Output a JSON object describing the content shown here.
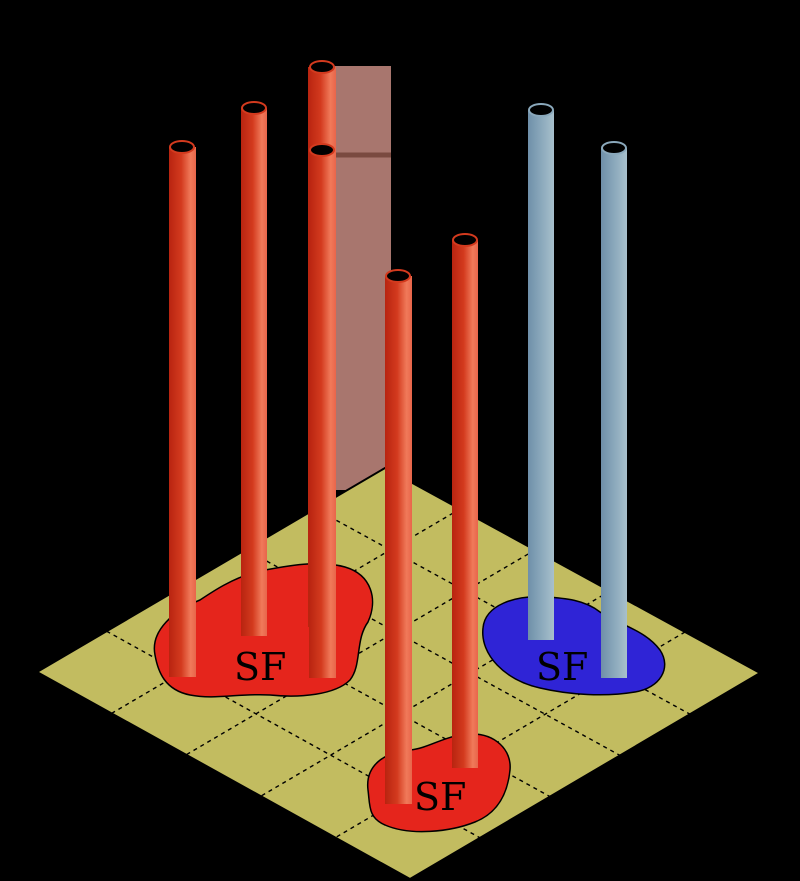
{
  "colors": {
    "background": "#000000",
    "plate_fill": "#c2bc60",
    "plate_stroke": "#000000",
    "grid_line": "#000000",
    "red_patch": "#e5251c",
    "blue_patch": "#2f24d6",
    "red_tube_dark": "#b82410",
    "red_tube_light": "#f07a5a",
    "blue_tube_dark": "#6f8fa9",
    "blue_tube_light": "#a8c0cc",
    "tube_cap": "#000000",
    "back_panel": "#a8766e"
  },
  "patches": [
    {
      "id": "patch-left",
      "label": "SF",
      "color": "red"
    },
    {
      "id": "patch-right",
      "label": "SF",
      "color": "blue"
    },
    {
      "id": "patch-bottom",
      "label": "SF",
      "color": "red"
    }
  ],
  "tubes": [
    {
      "id": "tube-1",
      "color": "red"
    },
    {
      "id": "tube-2",
      "color": "red"
    },
    {
      "id": "tube-3",
      "color": "red"
    },
    {
      "id": "tube-4",
      "color": "red"
    },
    {
      "id": "tube-5",
      "color": "red"
    },
    {
      "id": "tube-6",
      "color": "red"
    },
    {
      "id": "tube-7",
      "color": "blue"
    },
    {
      "id": "tube-8",
      "color": "blue"
    }
  ],
  "grid": {
    "cells_per_side": 5,
    "line_style": "dashed"
  }
}
